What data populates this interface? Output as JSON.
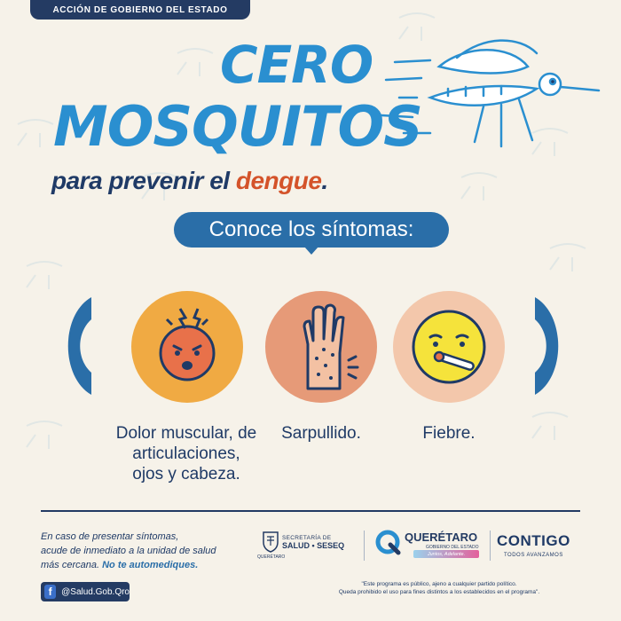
{
  "header": {
    "badge": "ACCIÓN DE GOBIERNO DEL ESTADO"
  },
  "title": {
    "line1": "CERO",
    "line2": "MOSQUITOS",
    "subtitle_prefix": "para prevenir el ",
    "subtitle_accent": "dengue",
    "subtitle_suffix": "."
  },
  "symptoms_header": "Conoce los síntomas:",
  "symptoms": [
    {
      "label": "Dolor muscular, de articulaciones, ojos y cabeza.",
      "icon": "headache-face-icon",
      "color": "#f0aa43"
    },
    {
      "label": "Sarpullido.",
      "icon": "rash-hand-icon",
      "color": "#e69a78"
    },
    {
      "label": "Fiebre.",
      "icon": "fever-face-icon",
      "color": "#f3c7ab"
    }
  ],
  "footer": {
    "note_line1": "En caso de presentar síntomas,",
    "note_line2": "acude de inmediato a la unidad de salud",
    "note_line3": "más cercana.",
    "note_strong": "No te automediques.",
    "social_handle": "@Salud.Gob.Qro",
    "secretaria_small": "SECRETARÍA DE",
    "secretaria_big": "SALUD • SESEQ",
    "secretaria_crest": "QUERÉTARO",
    "qro_name": "QUERÉTARO",
    "qro_sub": "GOBIERNO DEL ESTADO",
    "qro_tag": "Juntos, Adelante.",
    "contigo_name": "CONTIGO",
    "contigo_sub": "TODOS AVANZAMOS",
    "disclaimer_line1": "\"Este programa es público, ajeno a cualquier partido político.",
    "disclaimer_line2": "Queda prohibido el uso para fines distintos a los establecidos en el programa\"."
  },
  "colors": {
    "background": "#f6f2e9",
    "title_blue": "#2a8fd0",
    "navy": "#1f3a66",
    "accent_orange": "#d4532a",
    "pill_blue": "#2a6ea8"
  }
}
